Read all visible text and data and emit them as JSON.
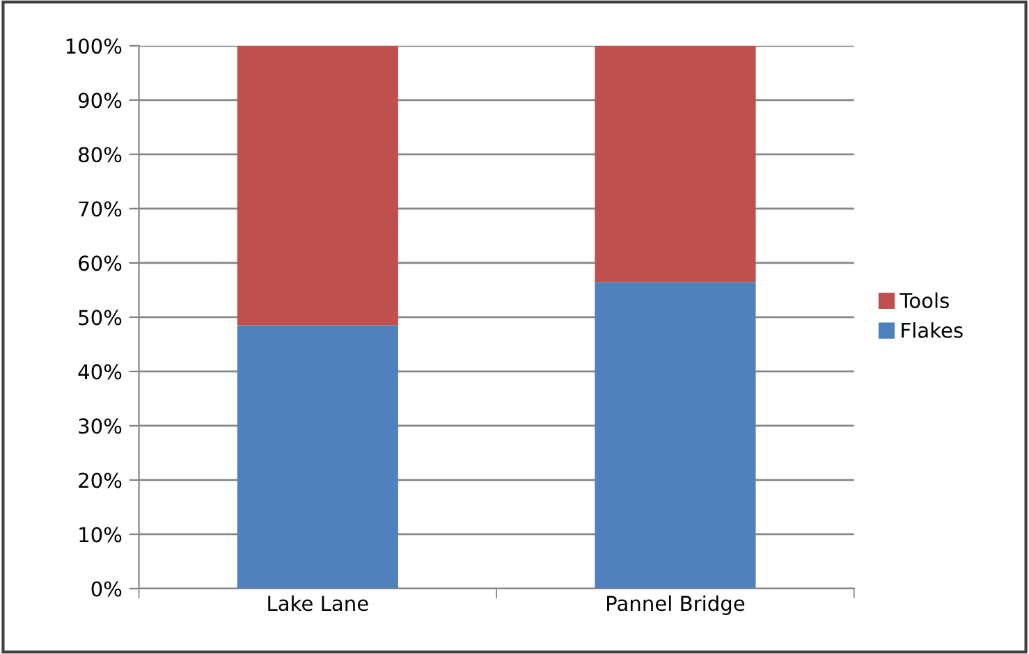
{
  "chart_data": {
    "type": "bar",
    "stacked": true,
    "categories": [
      "Lake Lane",
      "Pannel Bridge"
    ],
    "series": [
      {
        "name": "Flakes",
        "color": "#4f81bd",
        "values": [
          48.5,
          56.5
        ]
      },
      {
        "name": "Tools",
        "color": "#c0504d",
        "values": [
          51.5,
          43.5
        ]
      }
    ],
    "ylim": [
      0,
      100
    ],
    "yticks": [
      {
        "value": 0,
        "label": "0%"
      },
      {
        "value": 10,
        "label": "10%"
      },
      {
        "value": 20,
        "label": "20%"
      },
      {
        "value": 30,
        "label": "30%"
      },
      {
        "value": 40,
        "label": "40%"
      },
      {
        "value": 50,
        "label": "50%"
      },
      {
        "value": 60,
        "label": "60%"
      },
      {
        "value": 70,
        "label": "70%"
      },
      {
        "value": 80,
        "label": "80%"
      },
      {
        "value": 90,
        "label": "90%"
      },
      {
        "value": 100,
        "label": "100%"
      }
    ],
    "grid": "y",
    "legend": "right"
  }
}
